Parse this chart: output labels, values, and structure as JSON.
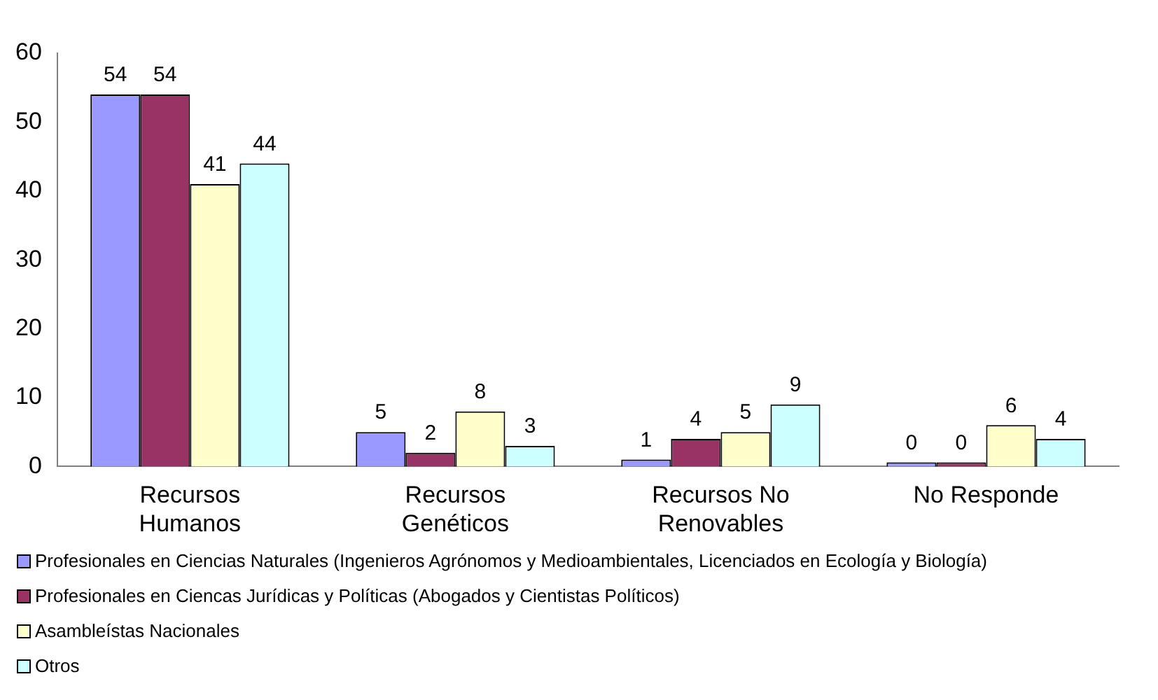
{
  "chart_data": {
    "type": "bar",
    "categories": [
      "Recursos Humanos",
      "Recursos Genéticos",
      "Recursos No Renovables",
      "No Responde"
    ],
    "series": [
      {
        "name": "Profesionales en Ciencias Naturales (Ingenieros Agrónomos y Medioambientales, Licenciados en Ecología y Biología)",
        "color": "#9999ff",
        "values": [
          54,
          5,
          1,
          0
        ]
      },
      {
        "name": "Profesionales en Ciencas Jurídicas y Políticas (Abogados y Cientistas Políticos)",
        "color": "#993366",
        "values": [
          54,
          2,
          4,
          0
        ]
      },
      {
        "name": "Asambleístas Nacionales",
        "color": "#ffffcc",
        "values": [
          41,
          8,
          5,
          6
        ]
      },
      {
        "name": "Otros",
        "color": "#ccffff",
        "values": [
          44,
          3,
          9,
          4
        ]
      }
    ],
    "ylim": [
      0,
      60
    ],
    "yticks": [
      0,
      10,
      20,
      30,
      40,
      50,
      60
    ],
    "grid": false,
    "legend": "bottom",
    "data_labels": true
  }
}
